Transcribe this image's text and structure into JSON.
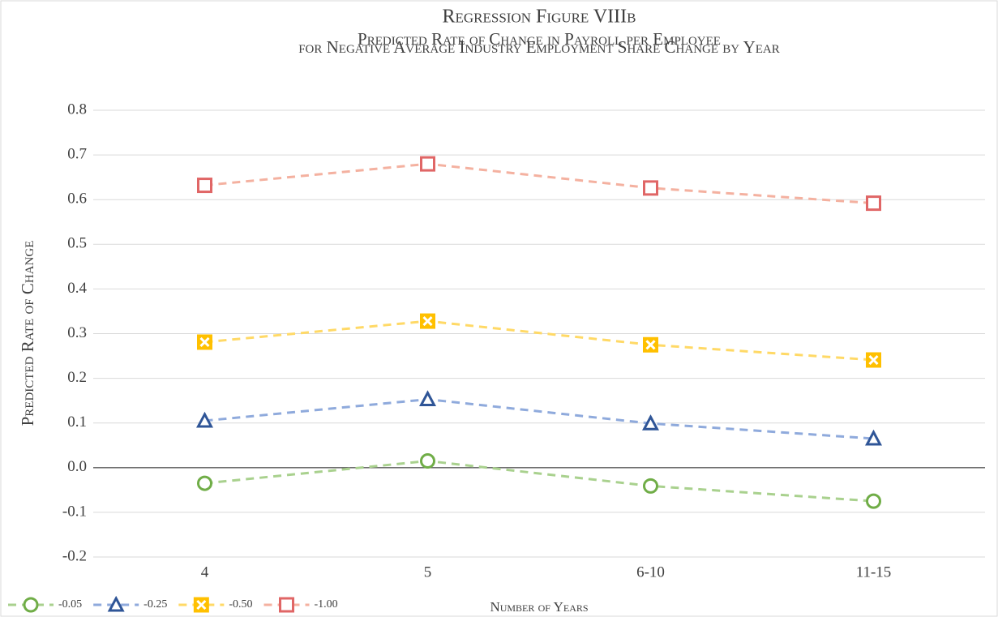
{
  "chart_data": {
    "type": "line",
    "title": "Regression Figure VIIIb",
    "subtitle": [
      "Predicted Rate of Change in Payroll per Employee",
      "for Negative Average Industry Employment Share Change by Year"
    ],
    "x_label": "Number of Years",
    "y_label": "Predicted Rate of Change",
    "categories": [
      "4",
      "5",
      "6-10",
      "11-15"
    ],
    "ylim": [
      -0.2,
      0.8
    ],
    "yticks": [
      -0.2,
      -0.1,
      {
        "value": 0,
        "label": "0.0"
      },
      0.1,
      0.2,
      0.3,
      0.4,
      0.5,
      0.6,
      0.7,
      0.8
    ],
    "grid": true,
    "legend": "bottom-left",
    "series": [
      {
        "name": "-0.05",
        "color": "#70ad47",
        "line_color": "#a9d18e",
        "marker": "circle",
        "values": [
          -0.035,
          0.015,
          -0.041,
          -0.075
        ]
      },
      {
        "name": "-0.25",
        "color": "#2f5597",
        "line_color": "#8faadc",
        "marker": "triangle",
        "values": [
          0.105,
          0.153,
          0.099,
          0.065
        ]
      },
      {
        "name": "-0.50",
        "color": "#ffc000",
        "line_color": "#ffd966",
        "marker": "square-x",
        "values": [
          0.281,
          0.328,
          0.275,
          0.241
        ]
      },
      {
        "name": "-1.00",
        "color": "#e06666",
        "line_color": "#f4b1a0",
        "marker": "square",
        "values": [
          0.632,
          0.68,
          0.626,
          0.592
        ]
      }
    ]
  }
}
